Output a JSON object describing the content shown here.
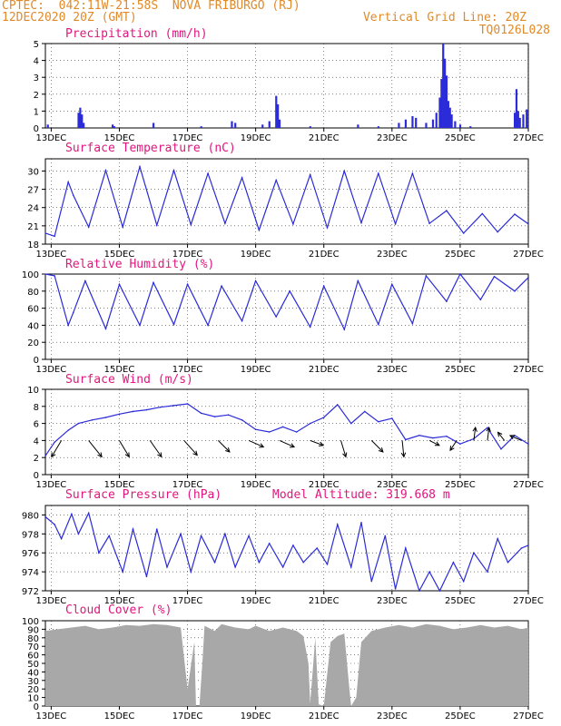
{
  "header": {
    "line1_left": "CPTEC:  042:11W-21:58S  NOVA FRIBURGO (RJ)",
    "line2_left": "12DEC2020 20Z (GMT)",
    "line1_right": "Vertical Grid Line: 20Z",
    "line2_right": "TQ0126L028"
  },
  "colors": {
    "header": "#e08a2a",
    "title": "#e0167e",
    "series": "#2b2bd8",
    "cloud": "#a8a8a8"
  },
  "x_ticks": [
    "13DEC",
    "15DEC",
    "17DEC",
    "19DEC",
    "21DEC",
    "23DEC",
    "25DEC",
    "27DEC"
  ],
  "model_altitude": "Model Altitude: 319.668 m",
  "chart_data": [
    {
      "type": "bar",
      "title": "Precipitation (mm/h)",
      "ylim": [
        0,
        5
      ],
      "yticks": [
        "0",
        "1",
        "2",
        "3",
        "4",
        "5"
      ],
      "x_range_days": [
        12.83,
        27.0
      ],
      "events": [
        {
          "day": 12.9,
          "v": 0.2
        },
        {
          "day": 13.8,
          "v": 0.9
        },
        {
          "day": 13.85,
          "v": 1.2
        },
        {
          "day": 13.9,
          "v": 0.8
        },
        {
          "day": 13.95,
          "v": 0.3
        },
        {
          "day": 14.8,
          "v": 0.2
        },
        {
          "day": 14.85,
          "v": 0.1
        },
        {
          "day": 16.0,
          "v": 0.3
        },
        {
          "day": 17.4,
          "v": 0.1
        },
        {
          "day": 18.3,
          "v": 0.4
        },
        {
          "day": 18.4,
          "v": 0.3
        },
        {
          "day": 19.2,
          "v": 0.2
        },
        {
          "day": 19.4,
          "v": 0.4
        },
        {
          "day": 19.6,
          "v": 1.9
        },
        {
          "day": 19.65,
          "v": 1.4
        },
        {
          "day": 19.7,
          "v": 0.5
        },
        {
          "day": 20.6,
          "v": 0.1
        },
        {
          "day": 22.0,
          "v": 0.2
        },
        {
          "day": 22.6,
          "v": 0.1
        },
        {
          "day": 23.2,
          "v": 0.3
        },
        {
          "day": 23.4,
          "v": 0.5
        },
        {
          "day": 23.6,
          "v": 0.7
        },
        {
          "day": 23.7,
          "v": 0.6
        },
        {
          "day": 24.0,
          "v": 0.3
        },
        {
          "day": 24.2,
          "v": 0.5
        },
        {
          "day": 24.3,
          "v": 0.9
        },
        {
          "day": 24.4,
          "v": 1.8
        },
        {
          "day": 24.45,
          "v": 2.9
        },
        {
          "day": 24.5,
          "v": 5.0
        },
        {
          "day": 24.55,
          "v": 4.1
        },
        {
          "day": 24.6,
          "v": 3.1
        },
        {
          "day": 24.65,
          "v": 1.6
        },
        {
          "day": 24.7,
          "v": 1.2
        },
        {
          "day": 24.75,
          "v": 0.8
        },
        {
          "day": 24.85,
          "v": 0.4
        },
        {
          "day": 25.0,
          "v": 0.2
        },
        {
          "day": 25.3,
          "v": 0.1
        },
        {
          "day": 26.6,
          "v": 0.9
        },
        {
          "day": 26.65,
          "v": 2.3
        },
        {
          "day": 26.7,
          "v": 1.0
        },
        {
          "day": 26.75,
          "v": 0.6
        },
        {
          "day": 26.85,
          "v": 0.8
        },
        {
          "day": 26.95,
          "v": 1.1
        }
      ]
    },
    {
      "type": "line",
      "title": "Surface Temperature (nC)",
      "ylim": [
        18,
        32
      ],
      "yticks": [
        "18",
        "21",
        "24",
        "27",
        "30"
      ],
      "x": [
        12.83,
        13.1,
        13.5,
        13.65,
        14.1,
        14.6,
        15.1,
        15.6,
        16.1,
        16.6,
        17.1,
        17.6,
        18.1,
        18.6,
        19.1,
        19.6,
        20.1,
        20.6,
        21.1,
        21.6,
        22.1,
        22.6,
        23.1,
        23.6,
        24.1,
        24.6,
        25.1,
        25.65,
        26.1,
        26.6,
        27.0
      ],
      "values": [
        19.8,
        19.3,
        28.2,
        26.0,
        20.8,
        30.1,
        20.8,
        30.7,
        21.1,
        30.1,
        21.2,
        29.6,
        21.4,
        28.9,
        20.3,
        28.5,
        21.3,
        29.4,
        20.7,
        30.0,
        21.5,
        29.6,
        21.3,
        29.6,
        21.4,
        23.5,
        19.8,
        23.0,
        20.0,
        22.9,
        21.3
      ]
    },
    {
      "type": "line",
      "title": "Relative Humidity (%)",
      "ylim": [
        0,
        100
      ],
      "yticks": [
        "0",
        "20",
        "40",
        "60",
        "80",
        "100"
      ],
      "x": [
        12.83,
        13.1,
        13.5,
        13.65,
        14.0,
        14.6,
        15.0,
        15.6,
        16.0,
        16.6,
        17.0,
        17.6,
        18.0,
        18.6,
        19.0,
        19.6,
        20.0,
        20.6,
        21.0,
        21.6,
        22.0,
        22.6,
        23.0,
        23.6,
        24.0,
        24.6,
        25.0,
        25.6,
        26.0,
        26.6,
        27.0
      ],
      "values": [
        100,
        98,
        40,
        55,
        92,
        36,
        88,
        40,
        90,
        41,
        88,
        40,
        86,
        45,
        92,
        50,
        80,
        38,
        86,
        35,
        92,
        41,
        88,
        42,
        98,
        68,
        100,
        70,
        97,
        80,
        96
      ]
    },
    {
      "type": "line",
      "title": "Surface Wind (m/s)",
      "ylim": [
        0,
        10
      ],
      "yticks": [
        "0",
        "2",
        "4",
        "6",
        "8",
        "10"
      ],
      "x": [
        12.83,
        13.1,
        13.5,
        13.8,
        14.2,
        14.6,
        15.0,
        15.4,
        15.8,
        16.2,
        16.6,
        17.0,
        17.4,
        17.8,
        18.2,
        18.6,
        19.0,
        19.4,
        19.8,
        20.2,
        20.6,
        21.0,
        21.4,
        21.8,
        22.2,
        22.6,
        23.0,
        23.4,
        23.8,
        24.2,
        24.6,
        25.0,
        25.4,
        25.8,
        26.2,
        26.6,
        27.0
      ],
      "values": [
        2.2,
        3.8,
        5.2,
        6.0,
        6.4,
        6.7,
        7.1,
        7.4,
        7.6,
        7.9,
        8.1,
        8.3,
        7.2,
        6.8,
        7.0,
        6.4,
        5.3,
        5.0,
        5.6,
        5.0,
        6.0,
        6.7,
        8.2,
        6.0,
        7.4,
        6.2,
        6.6,
        4.1,
        4.6,
        4.3,
        4.5,
        3.6,
        4.2,
        5.5,
        3.0,
        4.6,
        3.6
      ],
      "vectors": [
        {
          "day": 13.3,
          "u": -0.6,
          "v": -1.0
        },
        {
          "day": 14.1,
          "u": 0.8,
          "v": -1.0
        },
        {
          "day": 15.0,
          "u": 0.6,
          "v": -1.0
        },
        {
          "day": 15.9,
          "u": 0.7,
          "v": -1.0
        },
        {
          "day": 16.9,
          "u": 0.8,
          "v": -0.9
        },
        {
          "day": 17.9,
          "u": 0.7,
          "v": -0.7
        },
        {
          "day": 18.8,
          "u": 0.9,
          "v": -0.4
        },
        {
          "day": 19.7,
          "u": 0.9,
          "v": -0.4
        },
        {
          "day": 20.6,
          "u": 0.8,
          "v": -0.3
        },
        {
          "day": 21.5,
          "u": 0.3,
          "v": -1.0
        },
        {
          "day": 22.4,
          "u": 0.7,
          "v": -0.7
        },
        {
          "day": 23.3,
          "u": 0.1,
          "v": -1.0
        },
        {
          "day": 24.1,
          "u": 0.6,
          "v": -0.3
        },
        {
          "day": 24.9,
          "u": -0.4,
          "v": -0.6
        },
        {
          "day": 25.4,
          "u": 0.1,
          "v": 0.8
        },
        {
          "day": 25.8,
          "u": 0.1,
          "v": 0.8
        },
        {
          "day": 26.3,
          "u": -0.4,
          "v": 0.5
        },
        {
          "day": 26.8,
          "u": -0.7,
          "v": 0.3
        }
      ]
    },
    {
      "type": "line",
      "title": "Surface Pressure (hPa)",
      "ylim": [
        972,
        981
      ],
      "yticks": [
        "972",
        "974",
        "976",
        "978",
        "980"
      ],
      "x": [
        12.83,
        13.1,
        13.3,
        13.6,
        13.8,
        14.1,
        14.4,
        14.7,
        15.1,
        15.4,
        15.8,
        16.1,
        16.4,
        16.8,
        17.1,
        17.4,
        17.8,
        18.1,
        18.4,
        18.8,
        19.1,
        19.4,
        19.8,
        20.1,
        20.4,
        20.8,
        21.1,
        21.4,
        21.8,
        22.1,
        22.4,
        22.8,
        23.1,
        23.4,
        23.8,
        24.1,
        24.4,
        24.8,
        25.1,
        25.4,
        25.8,
        26.1,
        26.4,
        26.8,
        27.0
      ],
      "values": [
        979.8,
        979.0,
        977.5,
        980.1,
        978.0,
        980.2,
        976.0,
        977.8,
        974.0,
        978.5,
        973.5,
        978.5,
        974.5,
        978.0,
        974.0,
        977.8,
        975.0,
        978.0,
        974.5,
        977.8,
        975.0,
        977.0,
        974.5,
        976.8,
        975.0,
        976.5,
        974.8,
        979.0,
        974.5,
        979.2,
        973.0,
        977.8,
        972.2,
        976.5,
        972.0,
        974.0,
        972.0,
        975.0,
        973.0,
        976.0,
        974.0,
        977.5,
        975.0,
        976.5,
        976.8
      ]
    },
    {
      "type": "area",
      "title": "Cloud Cover (%)",
      "ylim": [
        0,
        100
      ],
      "yticks": [
        "0",
        "10",
        "20",
        "30",
        "40",
        "50",
        "60",
        "70",
        "80",
        "90",
        "100"
      ],
      "x": [
        12.83,
        13.2,
        13.6,
        14.0,
        14.4,
        14.8,
        15.2,
        15.6,
        16.0,
        16.4,
        16.8,
        17.0,
        17.2,
        17.25,
        17.35,
        17.45,
        17.5,
        17.8,
        18.0,
        18.4,
        18.8,
        19.0,
        19.4,
        19.8,
        20.2,
        20.4,
        20.55,
        20.6,
        20.75,
        20.85,
        21.0,
        21.2,
        21.4,
        21.6,
        21.75,
        21.8,
        21.95,
        22.1,
        22.4,
        22.8,
        23.2,
        23.6,
        24.0,
        24.4,
        24.8,
        25.2,
        25.6,
        26.0,
        26.4,
        26.8,
        27.0
      ],
      "values": [
        88,
        90,
        92,
        94,
        90,
        92,
        95,
        94,
        96,
        95,
        92,
        20,
        75,
        0,
        0,
        60,
        94,
        88,
        96,
        92,
        90,
        94,
        88,
        92,
        88,
        82,
        50,
        3,
        80,
        2,
        0,
        75,
        82,
        85,
        20,
        0,
        10,
        75,
        88,
        92,
        95,
        92,
        96,
        94,
        90,
        92,
        95,
        92,
        94,
        90,
        92
      ]
    }
  ]
}
